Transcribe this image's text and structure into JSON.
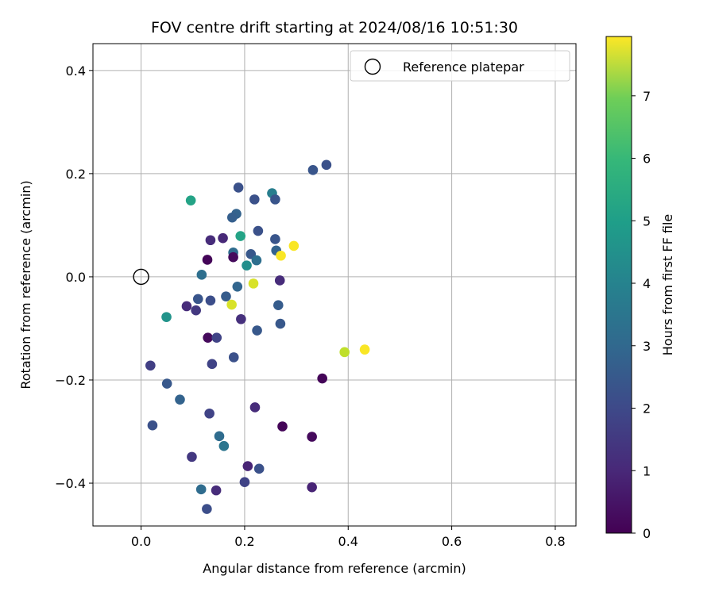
{
  "chart_data": {
    "type": "scatter",
    "title": "FOV centre drift starting at 2024/08/16 10:51:30",
    "xlabel": "Angular distance from reference (arcmin)",
    "ylabel": "Rotation from reference (arcmin)",
    "xlim": [
      -0.093,
      0.84
    ],
    "ylim": [
      -0.483,
      0.452
    ],
    "xticks": [
      0.0,
      0.2,
      0.4,
      0.6,
      0.8
    ],
    "xtick_labels": [
      "0.0",
      "0.2",
      "0.4",
      "0.6",
      "0.8"
    ],
    "yticks": [
      -0.4,
      -0.2,
      0.0,
      0.2,
      0.4
    ],
    "ytick_labels": [
      "−0.4",
      "−0.2",
      "0.0",
      "0.2",
      "0.4"
    ],
    "grid": true,
    "legend": {
      "placement": "upper-right",
      "entries": [
        {
          "label": "Reference platepar",
          "marker": "open-circle",
          "x": 0.0,
          "y": 0.0
        }
      ]
    },
    "colorbar": {
      "label": "Hours from first FF file",
      "colormap": "viridis",
      "range": [
        0,
        7.95
      ],
      "ticks": [
        0,
        1,
        2,
        3,
        4,
        5,
        6,
        7
      ],
      "tick_labels": [
        "0",
        "1",
        "2",
        "3",
        "4",
        "5",
        "6",
        "7"
      ]
    },
    "points": [
      {
        "x": 0.332,
        "y": 0.207,
        "h": 2.1
      },
      {
        "x": 0.358,
        "y": 0.217,
        "h": 2.0
      },
      {
        "x": 0.096,
        "y": 0.148,
        "h": 4.6
      },
      {
        "x": 0.188,
        "y": 0.173,
        "h": 2.0
      },
      {
        "x": 0.219,
        "y": 0.15,
        "h": 2.0
      },
      {
        "x": 0.253,
        "y": 0.162,
        "h": 3.4
      },
      {
        "x": 0.259,
        "y": 0.15,
        "h": 2.1
      },
      {
        "x": 0.184,
        "y": 0.122,
        "h": 2.5
      },
      {
        "x": 0.176,
        "y": 0.115,
        "h": 2.4
      },
      {
        "x": 0.192,
        "y": 0.079,
        "h": 4.6
      },
      {
        "x": 0.226,
        "y": 0.089,
        "h": 2.0
      },
      {
        "x": 0.158,
        "y": 0.075,
        "h": 0.9
      },
      {
        "x": 0.134,
        "y": 0.071,
        "h": 1.0
      },
      {
        "x": 0.259,
        "y": 0.073,
        "h": 2.1
      },
      {
        "x": 0.295,
        "y": 0.06,
        "h": 7.9
      },
      {
        "x": 0.178,
        "y": 0.047,
        "h": 2.8
      },
      {
        "x": 0.212,
        "y": 0.044,
        "h": 2.2
      },
      {
        "x": 0.261,
        "y": 0.051,
        "h": 2.5
      },
      {
        "x": 0.27,
        "y": 0.041,
        "h": 7.9
      },
      {
        "x": 0.128,
        "y": 0.033,
        "h": 0.1
      },
      {
        "x": 0.178,
        "y": 0.038,
        "h": 0.2
      },
      {
        "x": 0.223,
        "y": 0.032,
        "h": 2.9
      },
      {
        "x": 0.204,
        "y": 0.022,
        "h": 3.9
      },
      {
        "x": 0.117,
        "y": 0.004,
        "h": 2.9
      },
      {
        "x": 0.268,
        "y": -0.007,
        "h": 1.0
      },
      {
        "x": 0.217,
        "y": -0.013,
        "h": 7.5
      },
      {
        "x": 0.186,
        "y": -0.019,
        "h": 2.6
      },
      {
        "x": 0.164,
        "y": -0.038,
        "h": 2.3
      },
      {
        "x": 0.11,
        "y": -0.043,
        "h": 2.1
      },
      {
        "x": 0.134,
        "y": -0.046,
        "h": 1.9
      },
      {
        "x": 0.088,
        "y": -0.057,
        "h": 1.0
      },
      {
        "x": 0.175,
        "y": -0.054,
        "h": 7.5
      },
      {
        "x": 0.265,
        "y": -0.055,
        "h": 2.3
      },
      {
        "x": 0.106,
        "y": -0.065,
        "h": 1.3
      },
      {
        "x": 0.049,
        "y": -0.078,
        "h": 4.1
      },
      {
        "x": 0.193,
        "y": -0.082,
        "h": 1.1
      },
      {
        "x": 0.269,
        "y": -0.091,
        "h": 2.2
      },
      {
        "x": 0.224,
        "y": -0.104,
        "h": 2.2
      },
      {
        "x": 0.129,
        "y": -0.118,
        "h": 0.2
      },
      {
        "x": 0.146,
        "y": -0.118,
        "h": 1.6
      },
      {
        "x": 0.393,
        "y": -0.146,
        "h": 7.2
      },
      {
        "x": 0.432,
        "y": -0.141,
        "h": 7.9
      },
      {
        "x": 0.179,
        "y": -0.156,
        "h": 2.0
      },
      {
        "x": 0.137,
        "y": -0.169,
        "h": 1.6
      },
      {
        "x": 0.018,
        "y": -0.172,
        "h": 1.5
      },
      {
        "x": 0.35,
        "y": -0.197,
        "h": 0.1
      },
      {
        "x": 0.05,
        "y": -0.207,
        "h": 2.2
      },
      {
        "x": 0.075,
        "y": -0.238,
        "h": 2.5
      },
      {
        "x": 0.22,
        "y": -0.253,
        "h": 1.0
      },
      {
        "x": 0.132,
        "y": -0.265,
        "h": 1.6
      },
      {
        "x": 0.022,
        "y": -0.288,
        "h": 2.0
      },
      {
        "x": 0.273,
        "y": -0.29,
        "h": 0.1
      },
      {
        "x": 0.33,
        "y": -0.31,
        "h": 0.2
      },
      {
        "x": 0.151,
        "y": -0.309,
        "h": 2.8
      },
      {
        "x": 0.16,
        "y": -0.328,
        "h": 3.1
      },
      {
        "x": 0.098,
        "y": -0.349,
        "h": 1.3
      },
      {
        "x": 0.206,
        "y": -0.367,
        "h": 0.8
      },
      {
        "x": 0.228,
        "y": -0.372,
        "h": 2.0
      },
      {
        "x": 0.2,
        "y": -0.398,
        "h": 1.6
      },
      {
        "x": 0.33,
        "y": -0.408,
        "h": 0.8
      },
      {
        "x": 0.116,
        "y": -0.412,
        "h": 2.8
      },
      {
        "x": 0.145,
        "y": -0.414,
        "h": 1.0
      },
      {
        "x": 0.127,
        "y": -0.45,
        "h": 1.9
      }
    ],
    "reference": {
      "x": 0.0,
      "y": 0.0,
      "label": "Reference platepar"
    }
  }
}
